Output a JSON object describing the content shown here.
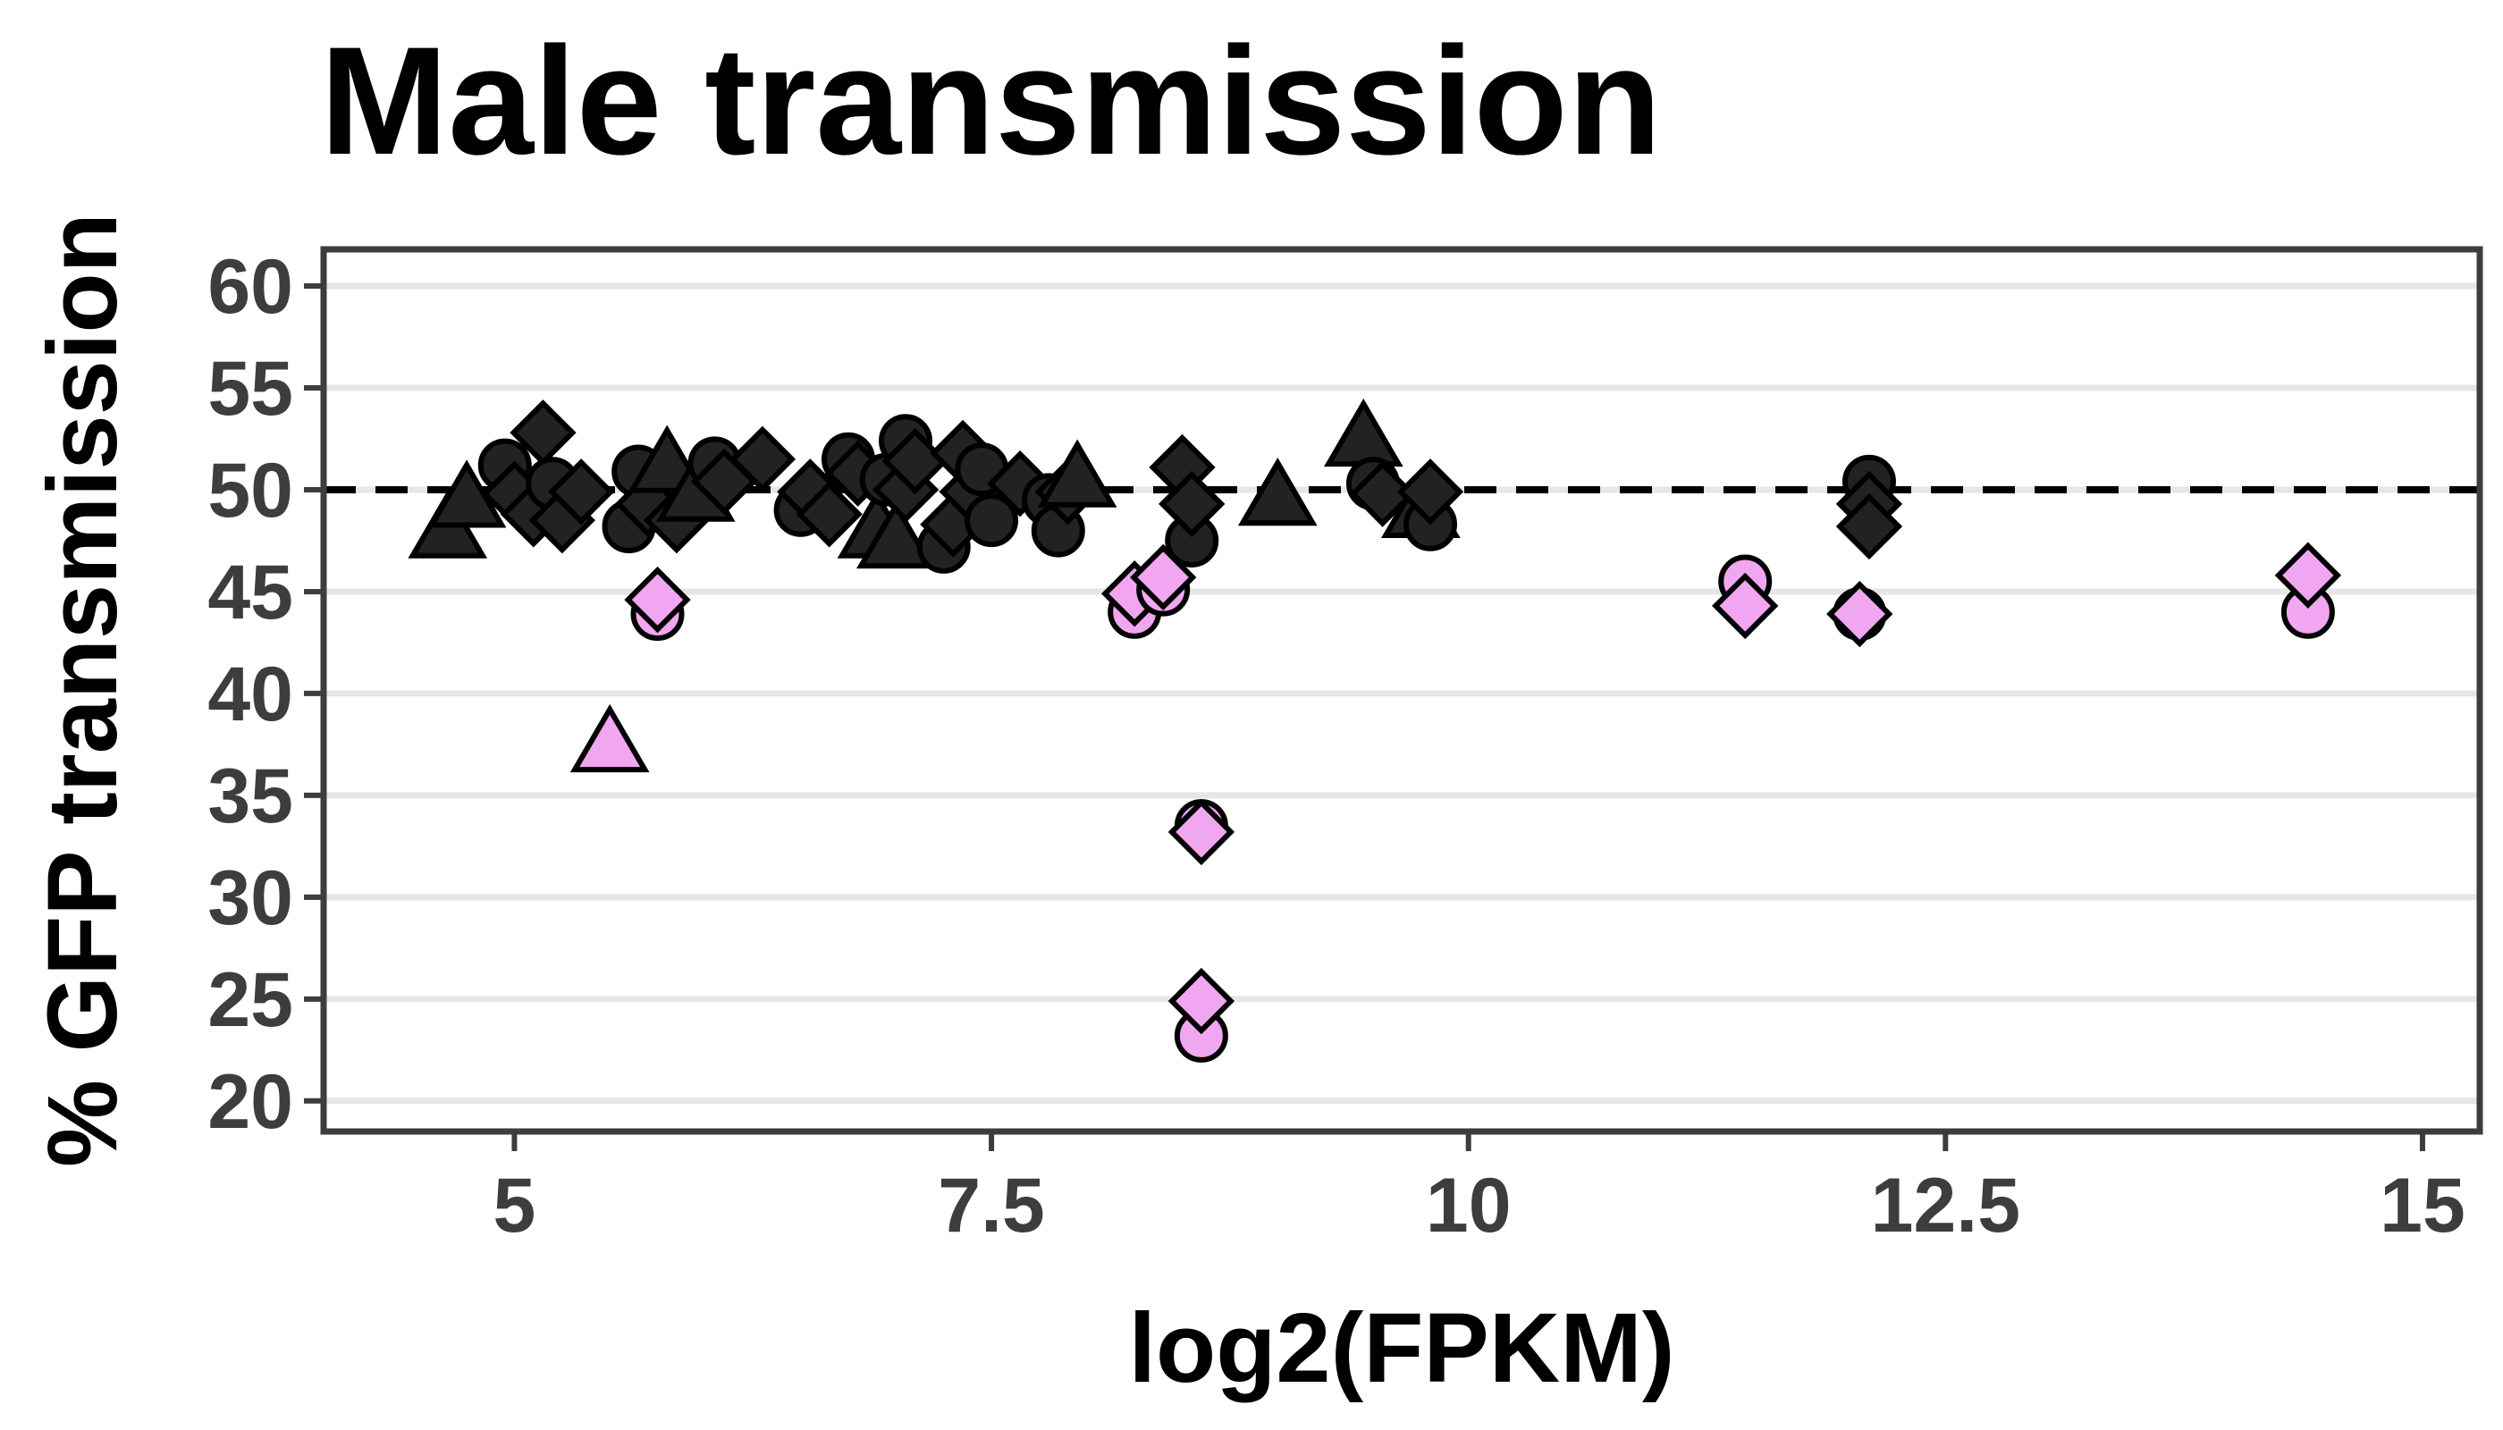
{
  "chart_data": {
    "type": "scatter",
    "title": "Male transmission",
    "xlabel": "log2(FPKM)",
    "ylabel": "% GFP transmission",
    "xlim": [
      4.0,
      15.3
    ],
    "ylim": [
      18.5,
      61.8
    ],
    "xticks": [
      {
        "value": 5,
        "label": "5"
      },
      {
        "value": 7.5,
        "label": "7.5"
      },
      {
        "value": 10,
        "label": "10"
      },
      {
        "value": 12.5,
        "label": "12.5"
      },
      {
        "value": 15,
        "label": "15"
      }
    ],
    "yticks": [
      {
        "value": 20,
        "label": "20"
      },
      {
        "value": 25,
        "label": "25"
      },
      {
        "value": 30,
        "label": "30"
      },
      {
        "value": 35,
        "label": "35"
      },
      {
        "value": 40,
        "label": "40"
      },
      {
        "value": 45,
        "label": "45"
      },
      {
        "value": 50,
        "label": "50"
      },
      {
        "value": 55,
        "label": "55"
      },
      {
        "value": 60,
        "label": "60"
      }
    ],
    "grid": "horizontal",
    "reference_line": {
      "y": 50,
      "style": "dashed"
    },
    "colors": {
      "normal": "#222222",
      "reduced": "#f0a6f0",
      "outline": "#000000"
    },
    "points": [
      {
        "x": 4.65,
        "y": 48.0,
        "shape": "triangle",
        "group": "normal"
      },
      {
        "x": 4.75,
        "y": 49.5,
        "shape": "triangle",
        "group": "normal"
      },
      {
        "x": 4.95,
        "y": 51.2,
        "shape": "circle",
        "group": "normal"
      },
      {
        "x": 5.0,
        "y": 49.8,
        "shape": "diamond",
        "group": "normal"
      },
      {
        "x": 5.1,
        "y": 48.8,
        "shape": "diamond",
        "group": "normal"
      },
      {
        "x": 5.15,
        "y": 52.8,
        "shape": "diamond",
        "group": "normal"
      },
      {
        "x": 5.2,
        "y": 50.3,
        "shape": "circle",
        "group": "normal"
      },
      {
        "x": 5.25,
        "y": 48.5,
        "shape": "diamond",
        "group": "normal"
      },
      {
        "x": 5.35,
        "y": 49.9,
        "shape": "diamond",
        "group": "normal"
      },
      {
        "x": 5.5,
        "y": 37.5,
        "shape": "triangle",
        "group": "reduced"
      },
      {
        "x": 5.6,
        "y": 48.2,
        "shape": "circle",
        "group": "normal"
      },
      {
        "x": 5.65,
        "y": 50.9,
        "shape": "circle",
        "group": "normal"
      },
      {
        "x": 5.7,
        "y": 49.3,
        "shape": "diamond",
        "group": "normal"
      },
      {
        "x": 5.75,
        "y": 43.9,
        "shape": "circle",
        "group": "reduced"
      },
      {
        "x": 5.75,
        "y": 44.6,
        "shape": "diamond",
        "group": "reduced"
      },
      {
        "x": 5.8,
        "y": 51.2,
        "shape": "triangle",
        "group": "normal"
      },
      {
        "x": 5.85,
        "y": 48.5,
        "shape": "diamond",
        "group": "normal"
      },
      {
        "x": 5.95,
        "y": 49.8,
        "shape": "triangle",
        "group": "normal"
      },
      {
        "x": 6.05,
        "y": 51.3,
        "shape": "circle",
        "group": "normal"
      },
      {
        "x": 6.1,
        "y": 50.4,
        "shape": "diamond",
        "group": "normal"
      },
      {
        "x": 6.3,
        "y": 51.5,
        "shape": "diamond",
        "group": "normal"
      },
      {
        "x": 6.5,
        "y": 49.0,
        "shape": "circle",
        "group": "normal"
      },
      {
        "x": 6.55,
        "y": 49.9,
        "shape": "diamond",
        "group": "normal"
      },
      {
        "x": 6.65,
        "y": 48.8,
        "shape": "diamond",
        "group": "normal"
      },
      {
        "x": 6.75,
        "y": 51.5,
        "shape": "circle",
        "group": "normal"
      },
      {
        "x": 6.8,
        "y": 50.8,
        "shape": "diamond",
        "group": "normal"
      },
      {
        "x": 6.9,
        "y": 48.0,
        "shape": "triangle",
        "group": "normal"
      },
      {
        "x": 6.95,
        "y": 50.5,
        "shape": "circle",
        "group": "normal"
      },
      {
        "x": 7.0,
        "y": 47.5,
        "shape": "triangle",
        "group": "normal"
      },
      {
        "x": 7.05,
        "y": 50.0,
        "shape": "diamond",
        "group": "normal"
      },
      {
        "x": 7.05,
        "y": 52.4,
        "shape": "circle",
        "group": "normal"
      },
      {
        "x": 7.1,
        "y": 51.4,
        "shape": "diamond",
        "group": "normal"
      },
      {
        "x": 7.25,
        "y": 47.2,
        "shape": "circle",
        "group": "normal"
      },
      {
        "x": 7.3,
        "y": 48.3,
        "shape": "diamond",
        "group": "normal"
      },
      {
        "x": 7.35,
        "y": 51.8,
        "shape": "diamond",
        "group": "normal"
      },
      {
        "x": 7.4,
        "y": 49.9,
        "shape": "diamond",
        "group": "normal"
      },
      {
        "x": 7.45,
        "y": 51.0,
        "shape": "circle",
        "group": "normal"
      },
      {
        "x": 7.5,
        "y": 48.5,
        "shape": "circle",
        "group": "normal"
      },
      {
        "x": 7.65,
        "y": 50.3,
        "shape": "diamond",
        "group": "normal"
      },
      {
        "x": 7.8,
        "y": 49.5,
        "shape": "circle",
        "group": "normal"
      },
      {
        "x": 7.85,
        "y": 48.0,
        "shape": "circle",
        "group": "normal"
      },
      {
        "x": 7.9,
        "y": 49.9,
        "shape": "diamond",
        "group": "normal"
      },
      {
        "x": 7.95,
        "y": 50.5,
        "shape": "triangle",
        "group": "normal"
      },
      {
        "x": 8.25,
        "y": 44.0,
        "shape": "circle",
        "group": "reduced"
      },
      {
        "x": 8.25,
        "y": 44.9,
        "shape": "diamond",
        "group": "reduced"
      },
      {
        "x": 8.4,
        "y": 45.1,
        "shape": "circle",
        "group": "reduced"
      },
      {
        "x": 8.4,
        "y": 45.7,
        "shape": "diamond",
        "group": "reduced"
      },
      {
        "x": 8.5,
        "y": 51.1,
        "shape": "diamond",
        "group": "normal"
      },
      {
        "x": 8.55,
        "y": 47.5,
        "shape": "circle",
        "group": "normal"
      },
      {
        "x": 8.55,
        "y": 49.3,
        "shape": "diamond",
        "group": "normal"
      },
      {
        "x": 8.6,
        "y": 33.5,
        "shape": "circle",
        "group": "reduced"
      },
      {
        "x": 8.6,
        "y": 33.2,
        "shape": "diamond",
        "group": "reduced"
      },
      {
        "x": 8.6,
        "y": 23.2,
        "shape": "circle",
        "group": "reduced"
      },
      {
        "x": 8.6,
        "y": 24.9,
        "shape": "diamond",
        "group": "reduced"
      },
      {
        "x": 9.0,
        "y": 49.6,
        "shape": "triangle",
        "group": "normal"
      },
      {
        "x": 9.45,
        "y": 52.5,
        "shape": "triangle",
        "group": "normal"
      },
      {
        "x": 9.5,
        "y": 50.3,
        "shape": "circle",
        "group": "normal"
      },
      {
        "x": 9.55,
        "y": 49.8,
        "shape": "diamond",
        "group": "normal"
      },
      {
        "x": 9.75,
        "y": 49.0,
        "shape": "triangle",
        "group": "normal"
      },
      {
        "x": 9.8,
        "y": 48.3,
        "shape": "circle",
        "group": "normal"
      },
      {
        "x": 9.8,
        "y": 49.9,
        "shape": "diamond",
        "group": "normal"
      },
      {
        "x": 11.45,
        "y": 45.5,
        "shape": "circle",
        "group": "reduced"
      },
      {
        "x": 11.45,
        "y": 44.3,
        "shape": "diamond",
        "group": "reduced"
      },
      {
        "x": 12.05,
        "y": 43.9,
        "shape": "circle",
        "group": "reduced"
      },
      {
        "x": 12.05,
        "y": 43.9,
        "shape": "diamond",
        "group": "reduced"
      },
      {
        "x": 12.1,
        "y": 50.4,
        "shape": "circle",
        "group": "normal"
      },
      {
        "x": 12.1,
        "y": 49.3,
        "shape": "diamond",
        "group": "normal"
      },
      {
        "x": 12.1,
        "y": 48.2,
        "shape": "diamond",
        "group": "normal"
      },
      {
        "x": 14.4,
        "y": 44.0,
        "shape": "circle",
        "group": "reduced"
      },
      {
        "x": 14.4,
        "y": 45.8,
        "shape": "diamond",
        "group": "reduced"
      }
    ]
  }
}
